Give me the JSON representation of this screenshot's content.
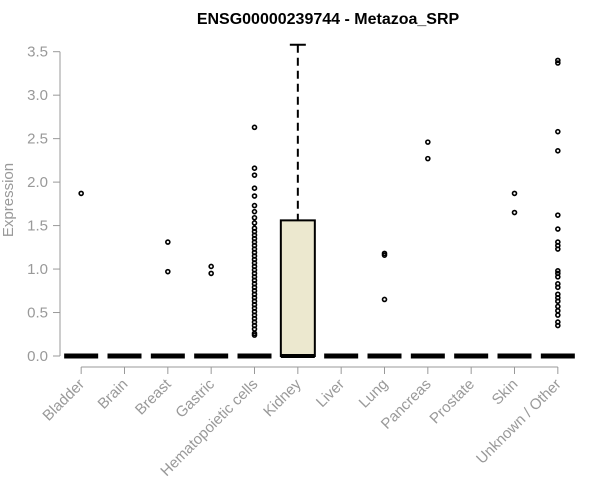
{
  "chart_data": {
    "type": "box",
    "title": "ENSG00000239744 - Metazoa_SRP",
    "xlabel": "",
    "ylabel": "Expression",
    "ylim": [
      0,
      3.6
    ],
    "yticks": [
      "0.0",
      "0.5",
      "1.0",
      "1.5",
      "2.0",
      "2.5",
      "3.0",
      "3.5"
    ],
    "box_fill": "#ece8cf",
    "categories": [
      "Bladder",
      "Brain",
      "Breast",
      "Gastric",
      "Hematopoietic cells",
      "Kidney",
      "Liver",
      "Lung",
      "Pancreas",
      "Prostate",
      "Skin",
      "Unknown / Other"
    ],
    "boxes": [
      {
        "q1": 0,
        "median": 0,
        "q3": 0,
        "whisker_low": 0,
        "whisker_high": 0,
        "outliers": [
          1.87
        ]
      },
      {
        "q1": 0,
        "median": 0,
        "q3": 0,
        "whisker_low": 0,
        "whisker_high": 0,
        "outliers": []
      },
      {
        "q1": 0,
        "median": 0,
        "q3": 0,
        "whisker_low": 0,
        "whisker_high": 0,
        "outliers": [
          1.31,
          0.97
        ]
      },
      {
        "q1": 0,
        "median": 0,
        "q3": 0,
        "whisker_low": 0,
        "whisker_high": 0,
        "outliers": [
          1.03,
          0.95
        ]
      },
      {
        "q1": 0,
        "median": 0,
        "q3": 0,
        "whisker_low": 0,
        "whisker_high": 0,
        "outliers": [
          2.63,
          2.16,
          2.08,
          1.93,
          1.84,
          1.73,
          1.66,
          1.59,
          1.53,
          1.47,
          1.43,
          1.39,
          1.35,
          1.31,
          1.27,
          1.23,
          1.19,
          1.15,
          1.11,
          1.07,
          1.03,
          0.99,
          0.95,
          0.91,
          0.87,
          0.83,
          0.79,
          0.75,
          0.71,
          0.67,
          0.63,
          0.59,
          0.55,
          0.51,
          0.47,
          0.43,
          0.39,
          0.35,
          0.31,
          0.26,
          0.24
        ]
      },
      {
        "q1": 0,
        "median": 0,
        "q3": 1.56,
        "whisker_low": 0,
        "whisker_high": 3.58,
        "outliers": []
      },
      {
        "q1": 0,
        "median": 0,
        "q3": 0,
        "whisker_low": 0,
        "whisker_high": 0,
        "outliers": []
      },
      {
        "q1": 0,
        "median": 0,
        "q3": 0,
        "whisker_low": 0,
        "whisker_high": 0,
        "outliers": [
          1.18,
          1.16,
          0.65
        ]
      },
      {
        "q1": 0,
        "median": 0,
        "q3": 0,
        "whisker_low": 0,
        "whisker_high": 0,
        "outliers": [
          2.46,
          2.27
        ]
      },
      {
        "q1": 0,
        "median": 0,
        "q3": 0,
        "whisker_low": 0,
        "whisker_high": 0,
        "outliers": []
      },
      {
        "q1": 0,
        "median": 0,
        "q3": 0,
        "whisker_low": 0,
        "whisker_high": 0,
        "outliers": [
          1.87,
          1.65
        ]
      },
      {
        "q1": 0,
        "median": 0,
        "q3": 0,
        "whisker_low": 0,
        "whisker_high": 0,
        "outliers": [
          3.4,
          3.37,
          2.58,
          2.36,
          1.62,
          1.46,
          1.31,
          1.27,
          1.23,
          0.98,
          0.95,
          0.91,
          0.83,
          0.79,
          0.71,
          0.67,
          0.63,
          0.57,
          0.52,
          0.47,
          0.39,
          0.35
        ]
      }
    ]
  }
}
